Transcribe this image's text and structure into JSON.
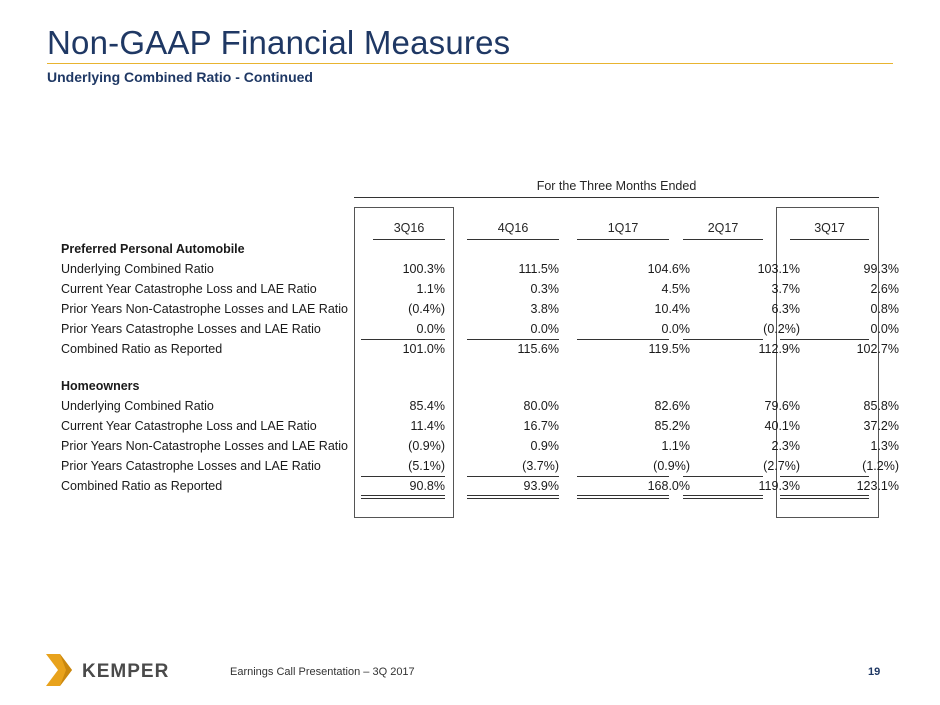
{
  "title": "Non-GAAP Financial Measures",
  "subtitle": "Underlying Combined Ratio  - Continued",
  "table": {
    "period_header": "For the Three Months Ended",
    "columns": [
      "3Q16",
      "4Q16",
      "1Q17",
      "2Q17",
      "3Q17"
    ],
    "sections": [
      {
        "heading": "Preferred Personal Automobile",
        "rows": [
          {
            "label": "Underlying Combined Ratio",
            "values": [
              "100.3%",
              "111.5%",
              "104.6%",
              "103.1%",
              "99.3%"
            ]
          },
          {
            "label": "Current Year Catastrophe Loss and LAE Ratio",
            "values": [
              "1.1%",
              "0.3%",
              "4.5%",
              "3.7%",
              "2.6%"
            ]
          },
          {
            "label": "Prior Years Non-Catastrophe Losses and LAE Ratio",
            "values": [
              "(0.4%)",
              "3.8%",
              "10.4%",
              "6.3%",
              "0.8%"
            ]
          },
          {
            "label": "Prior Years Catastrophe Losses and LAE Ratio",
            "values": [
              "0.0%",
              "0.0%",
              "0.0%",
              "(0.2%)",
              "0.0%"
            ]
          },
          {
            "label": "Combined Ratio as Reported",
            "values": [
              "101.0%",
              "115.6%",
              "119.5%",
              "112.9%",
              "102.7%"
            ]
          }
        ]
      },
      {
        "heading": "Homeowners",
        "rows": [
          {
            "label": "Underlying Combined Ratio",
            "values": [
              "85.4%",
              "80.0%",
              "82.6%",
              "79.6%",
              "85.8%"
            ]
          },
          {
            "label": "Current Year Catastrophe Loss and LAE Ratio",
            "values": [
              "11.4%",
              "16.7%",
              "85.2%",
              "40.1%",
              "37.2%"
            ]
          },
          {
            "label": "Prior Years Non-Catastrophe Losses and LAE Ratio",
            "values": [
              "(0.9%)",
              "0.9%",
              "1.1%",
              "2.3%",
              "1.3%"
            ]
          },
          {
            "label": "Prior Years Catastrophe Losses and LAE Ratio",
            "values": [
              "(5.1%)",
              "(3.7%)",
              "(0.9%)",
              "(2.7%)",
              "(1.2%)"
            ]
          },
          {
            "label": "Combined Ratio as Reported",
            "values": [
              "90.8%",
              "93.9%",
              "168.0%",
              "119.3%",
              "123.1%"
            ]
          }
        ]
      }
    ]
  },
  "footer": {
    "logo_text": "KEMPER",
    "caption": "Earnings Call Presentation – 3Q 2017",
    "page_number": "19"
  },
  "colors": {
    "title": "#1f3864",
    "rule": "#e8b430",
    "logo_gold": "#e8a21c",
    "logo_text": "#4a4a4a"
  }
}
